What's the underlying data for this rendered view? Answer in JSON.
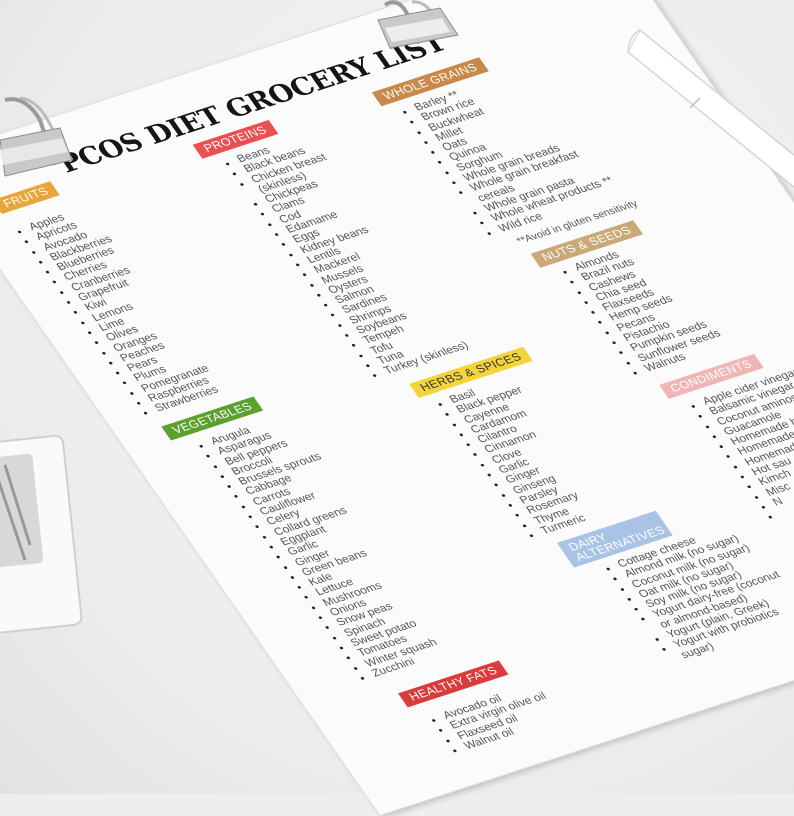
{
  "title": "PCOS DIET GROCERY LIST",
  "sections": [
    {
      "key": "fruits",
      "label": "FRUITS",
      "color": "#e9a43c",
      "items": [
        {
          "text": "Apples"
        },
        {
          "text": "Apricots"
        },
        {
          "text": "Avocado"
        },
        {
          "text": "Blackberries"
        },
        {
          "text": "Blueberries"
        },
        {
          "text": "Cherries"
        },
        {
          "text": "Cranberries"
        },
        {
          "text": "Grapefruit"
        },
        {
          "text": "Kiwi"
        },
        {
          "text": "Lemons"
        },
        {
          "text": "Lime"
        },
        {
          "text": "Olives"
        },
        {
          "text": "Oranges"
        },
        {
          "text": "Peaches"
        },
        {
          "text": "Pears"
        },
        {
          "text": "Plums"
        },
        {
          "text": "Pomegranate"
        },
        {
          "text": "Raspberries"
        },
        {
          "text": "Strawberries"
        }
      ]
    },
    {
      "key": "proteins",
      "label": "PROTEINS",
      "color": "#ea4f52",
      "items": [
        {
          "text": "Beans"
        },
        {
          "text": "Black beans"
        },
        {
          "text": "Chicken breast"
        },
        {
          "text": "(skinless)",
          "cont": true
        },
        {
          "text": "Chickpeas"
        },
        {
          "text": "Clams"
        },
        {
          "text": "Cod"
        },
        {
          "text": "Edamame"
        },
        {
          "text": "Eggs"
        },
        {
          "text": "Kidney beans"
        },
        {
          "text": "Lentils"
        },
        {
          "text": "Mackerel"
        },
        {
          "text": "Mussels"
        },
        {
          "text": "Oysters"
        },
        {
          "text": "Salmon"
        },
        {
          "text": "Sardines"
        },
        {
          "text": "Shrimps"
        },
        {
          "text": "Soybeans"
        },
        {
          "text": "Tempeh"
        },
        {
          "text": "Tofu"
        },
        {
          "text": "Tuna"
        },
        {
          "text": "Turkey (skinless)"
        }
      ]
    },
    {
      "key": "whole_grains",
      "label": "WHOLE GRAINS",
      "color": "#c8894a",
      "note": "**Avoid in gluten sensitivity",
      "items": [
        {
          "text": "Barley **"
        },
        {
          "text": "Brown rice"
        },
        {
          "text": "Buckwheat"
        },
        {
          "text": "Millet"
        },
        {
          "text": "Oats"
        },
        {
          "text": "Quinoa"
        },
        {
          "text": "Sorghum"
        },
        {
          "text": "Whole grain breads"
        },
        {
          "text": "Whole grain breakfast"
        },
        {
          "text": "cereals",
          "cont": true
        },
        {
          "text": "Whole grain pasta"
        },
        {
          "text": "Whole wheat products **"
        },
        {
          "text": "Wild rice"
        }
      ]
    },
    {
      "key": "nuts_seeds",
      "label": "NUTS & SEEDS",
      "color": "#c9a977",
      "items": [
        {
          "text": "Almonds"
        },
        {
          "text": "Brazil nuts"
        },
        {
          "text": "Cashews"
        },
        {
          "text": "Chia seed"
        },
        {
          "text": "Flaxseeds"
        },
        {
          "text": "Hemp seeds"
        },
        {
          "text": "Pecans"
        },
        {
          "text": "Pistachio"
        },
        {
          "text": "Pumpkin seeds"
        },
        {
          "text": "Sunflower seeds"
        },
        {
          "text": "Walnuts"
        }
      ]
    },
    {
      "key": "vegetables",
      "label": "VEGETABLES",
      "color": "#5aa12e",
      "items": [
        {
          "text": "Arugula"
        },
        {
          "text": "Asparagus"
        },
        {
          "text": "Bell peppers"
        },
        {
          "text": "Broccoli"
        },
        {
          "text": "Brussels sprouts"
        },
        {
          "text": "Cabbage"
        },
        {
          "text": "Carrots"
        },
        {
          "text": "Cauliflower"
        },
        {
          "text": "Celery"
        },
        {
          "text": "Collard greens"
        },
        {
          "text": "Eggplant"
        },
        {
          "text": "Garlic"
        },
        {
          "text": "Ginger"
        },
        {
          "text": "Green beans"
        },
        {
          "text": "Kale"
        },
        {
          "text": "Lettuce"
        },
        {
          "text": "Mushrooms"
        },
        {
          "text": "Onions"
        },
        {
          "text": "Snow peas"
        },
        {
          "text": "Spinach"
        },
        {
          "text": "Sweet potato"
        },
        {
          "text": "Tomatoes"
        },
        {
          "text": "Winter squash"
        },
        {
          "text": "Zucchini"
        }
      ]
    },
    {
      "key": "herbs_spices",
      "label": "HERBS & SPICES",
      "color": "#f3d43a",
      "text_color": "#333333",
      "items": [
        {
          "text": "Basil"
        },
        {
          "text": "Black pepper"
        },
        {
          "text": "Cayenne"
        },
        {
          "text": "Cardamom"
        },
        {
          "text": "Cilantro"
        },
        {
          "text": "Cinnamon"
        },
        {
          "text": "Clove"
        },
        {
          "text": "Garlic"
        },
        {
          "text": "Ginger"
        },
        {
          "text": "Ginseng"
        },
        {
          "text": "Parsley"
        },
        {
          "text": "Rosemary"
        },
        {
          "text": "Thyme"
        },
        {
          "text": "Turmeric"
        }
      ]
    },
    {
      "key": "condiments",
      "label": "CONDIMENTS",
      "color": "#f0b5b5",
      "items": [
        {
          "text": "Apple cider vinegar"
        },
        {
          "text": "Balsamic vinegar"
        },
        {
          "text": "Coconut aminos"
        },
        {
          "text": "Guacamole"
        },
        {
          "text": "Homemade h"
        },
        {
          "text": "Homemade"
        },
        {
          "text": "Homemad"
        },
        {
          "text": "Hot sau"
        },
        {
          "text": "Kimch"
        },
        {
          "text": "Misc"
        },
        {
          "text": "N"
        },
        {
          "text": ""
        }
      ]
    },
    {
      "key": "dairy_alternatives",
      "label": "DAIRY ALTERNATIVES",
      "color": "#a8c3e6",
      "two_line": true,
      "items": [
        {
          "text": "Cottage cheese"
        },
        {
          "text": "Almond milk (no sugar)"
        },
        {
          "text": "Coconut milk (no sugar)"
        },
        {
          "text": "Oat milk (no sugar)"
        },
        {
          "text": "Soy milk (no sugar)"
        },
        {
          "text": "Yogurt dairy-free (coconut"
        },
        {
          "text": "or almond-based)",
          "cont": true
        },
        {
          "text": "Yogurt (plain, Greek)"
        },
        {
          "text": "Yogurt with probiotics"
        },
        {
          "text": "sugar)",
          "cont": true
        }
      ]
    },
    {
      "key": "healthy_fats",
      "label": "HEALTHY FATS",
      "color": "#dc3b3b",
      "items": [
        {
          "text": "Avocado oil"
        },
        {
          "text": "Extra virgin olive oil"
        },
        {
          "text": "Flaxseed oil"
        },
        {
          "text": "Walnut oil"
        }
      ]
    }
  ]
}
